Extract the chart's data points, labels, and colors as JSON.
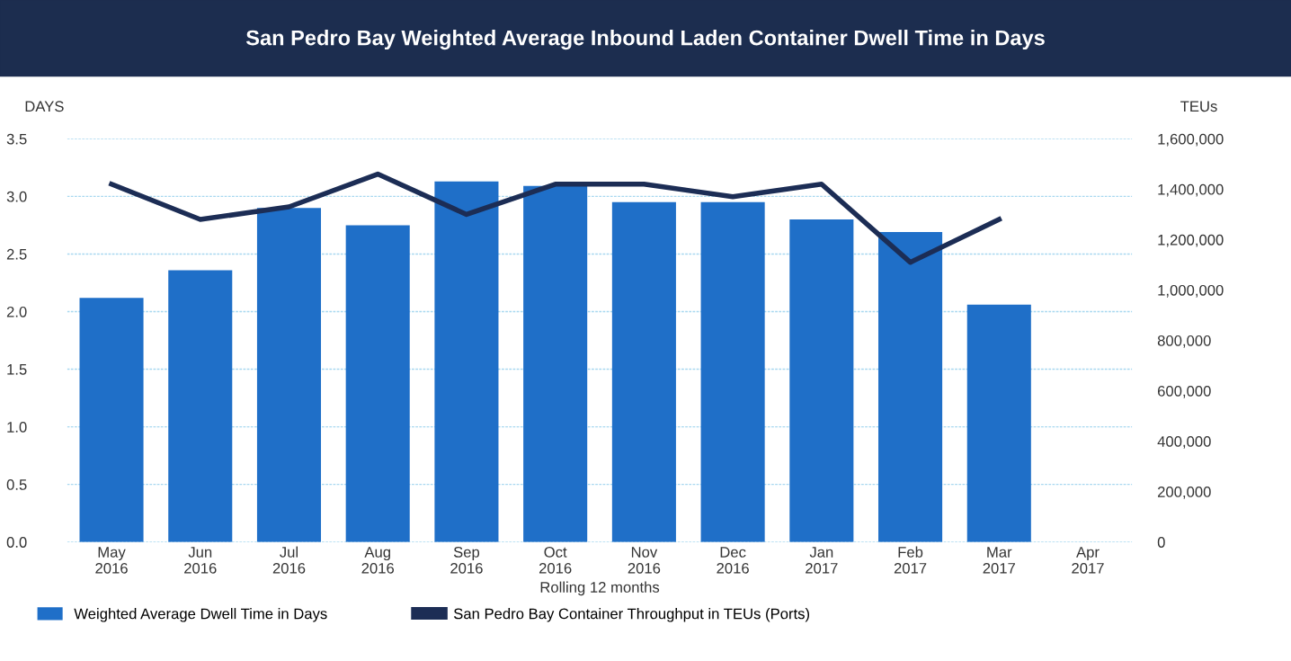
{
  "chart_data": {
    "type": "bar",
    "title": "San Pedro Bay Weighted Average Inbound Laden Container Dwell Time in Days",
    "xlabel": "Rolling 12 months",
    "ylabel": "DAYS",
    "y2label": "TEUs",
    "categories": [
      "May\n2016",
      "Jun\n2016",
      "Jul\n2016",
      "Aug\n2016",
      "Sep\n2016",
      "Oct\n2016",
      "Nov\n2016",
      "Dec\n2016",
      "Jan\n2017",
      "Feb\n2017",
      "Mar\n2017",
      "Apr\n2017"
    ],
    "series": [
      {
        "name": "Weighted Average Dwell Time in Days",
        "color": "#1f6fc8",
        "values": [
          2.12,
          2.36,
          2.9,
          2.75,
          3.13,
          3.09,
          2.95,
          2.95,
          2.8,
          2.69,
          2.06,
          null
        ]
      },
      {
        "name": "San Pedro Bay Container Throughput in TEUs (Ports)",
        "type": "line",
        "axis": "y2",
        "color": "#1c2d55",
        "values": [
          1420000,
          1280000,
          1330000,
          1460000,
          1300000,
          1420000,
          1420000,
          1370000,
          1420000,
          1110000,
          1280000,
          null
        ]
      }
    ],
    "ylim": [
      0,
      3.5
    ],
    "yticks": [
      {
        "value": 0,
        "label": "0.0"
      },
      0.5,
      {
        "value": 1,
        "label": "1.0"
      },
      1.5,
      {
        "value": 2,
        "label": "2.0"
      },
      2.5,
      {
        "value": 3,
        "label": "3.0"
      },
      3.5
    ],
    "y2lim": [
      0,
      1600000
    ],
    "y2ticks": [
      {
        "value": 0,
        "label": "0"
      },
      {
        "value": 200000,
        "label": "200,000"
      },
      {
        "value": 400000,
        "label": "400,000"
      },
      {
        "value": 600000,
        "label": "600,000"
      },
      {
        "value": 800000,
        "label": "800,000"
      },
      {
        "value": 1000000,
        "label": "1,000,000"
      },
      {
        "value": 1200000,
        "label": "1,200,000"
      },
      {
        "value": 1400000,
        "label": "1,400,000"
      },
      {
        "value": 1600000,
        "label": "1,600,000"
      }
    ],
    "grid": "y",
    "legend": "bottom",
    "marker": "none",
    "line_style": "solid"
  }
}
